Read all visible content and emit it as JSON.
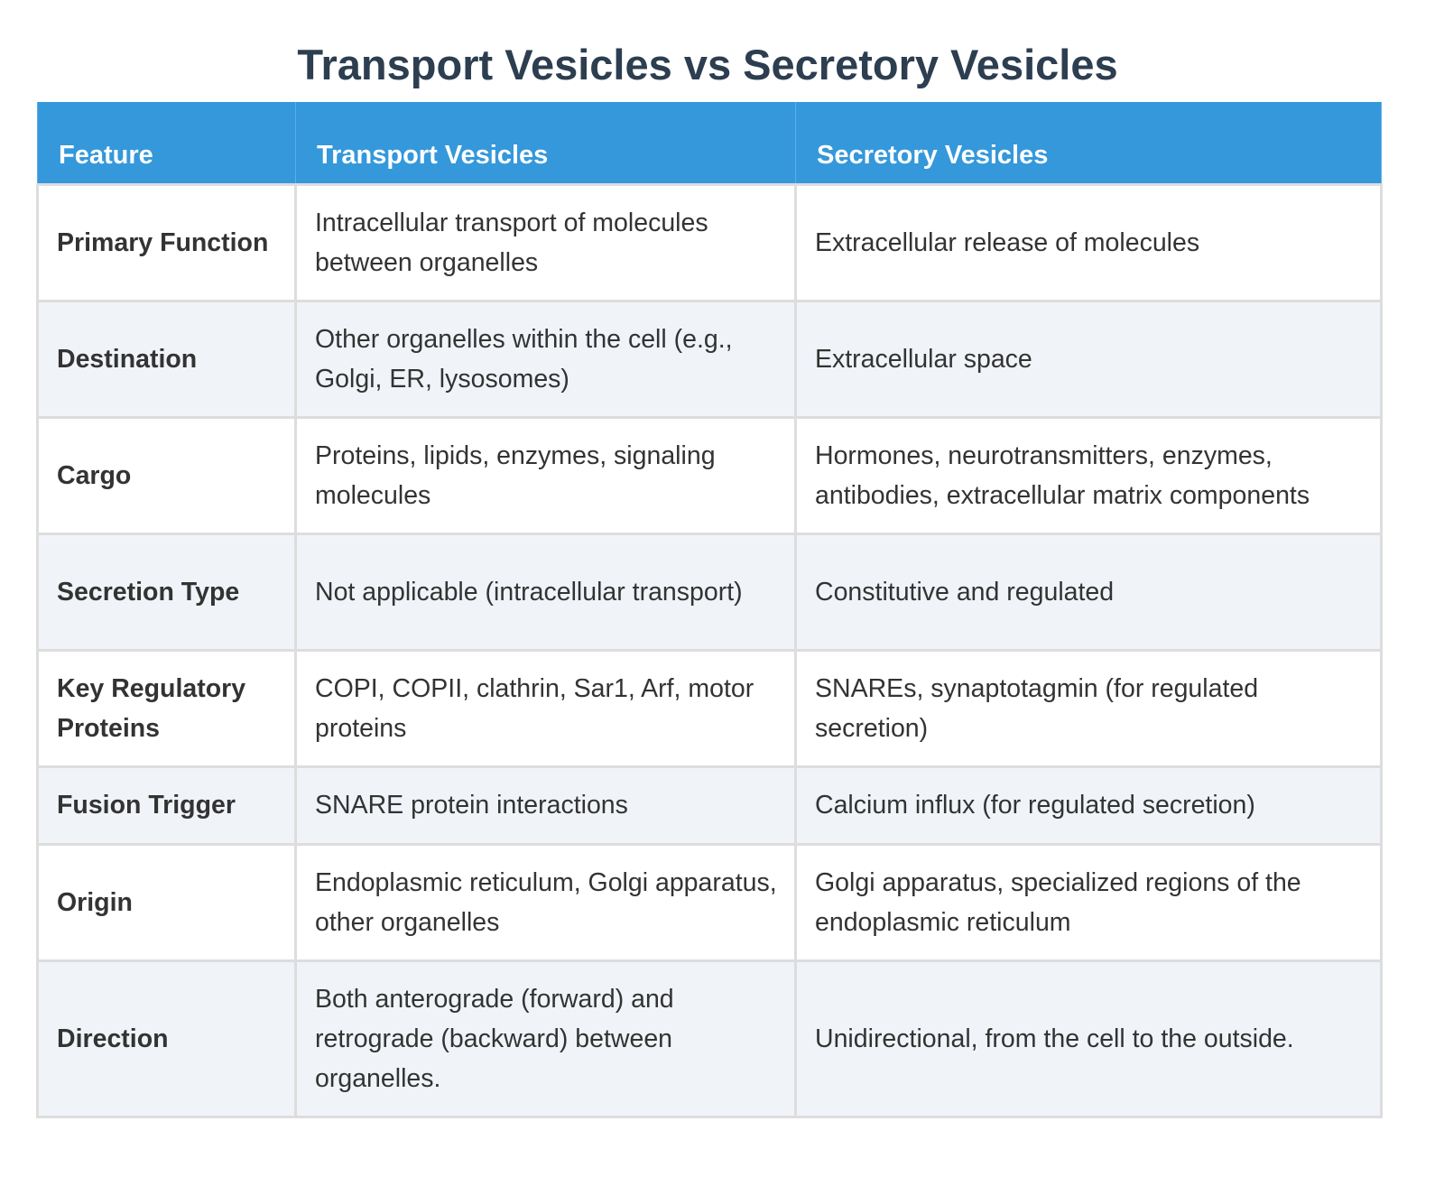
{
  "title": "Transport Vesicles vs Secretory Vesicles",
  "headers": [
    "Feature",
    "Transport Vesicles",
    "Secretory Vesicles"
  ],
  "rows": [
    {
      "feature": "Primary Function",
      "transport": "Intracellular transport of molecules between organelles",
      "secretory": "Extracellular release of molecules"
    },
    {
      "feature": "Destination",
      "transport": "Other organelles within the cell (e.g., Golgi, ER, lysosomes)",
      "secretory": "Extracellular space"
    },
    {
      "feature": "Cargo",
      "transport": "Proteins, lipids, enzymes, signaling molecules",
      "secretory": "Hormones, neurotransmitters, enzymes, antibodies, extracellular matrix components"
    },
    {
      "feature": "Secretion Type",
      "transport": "Not applicable (intracellular transport)",
      "secretory": "Constitutive and regulated"
    },
    {
      "feature": "Key Regulatory Proteins",
      "transport": "COPI, COPII, clathrin, Sar1, Arf, motor proteins",
      "secretory": "SNAREs, synaptotagmin (for regulated secretion)"
    },
    {
      "feature": "Fusion Trigger",
      "transport": "SNARE protein interactions",
      "secretory": "Calcium influx (for regulated secretion)"
    },
    {
      "feature": "Origin",
      "transport": "Endoplasmic reticulum, Golgi apparatus, other organelles",
      "secretory": "Golgi apparatus, specialized regions of the endoplasmic reticulum"
    },
    {
      "feature": "Direction",
      "transport": "Both anterograde (forward) and retrograde (backward) between organelles.",
      "secretory": "Unidirectional, from the cell to the outside."
    }
  ],
  "colors": {
    "header_bg": "#3498db",
    "title": "#2c3e50",
    "alt_row": "#f0f4f9",
    "border": "#dddddd"
  }
}
